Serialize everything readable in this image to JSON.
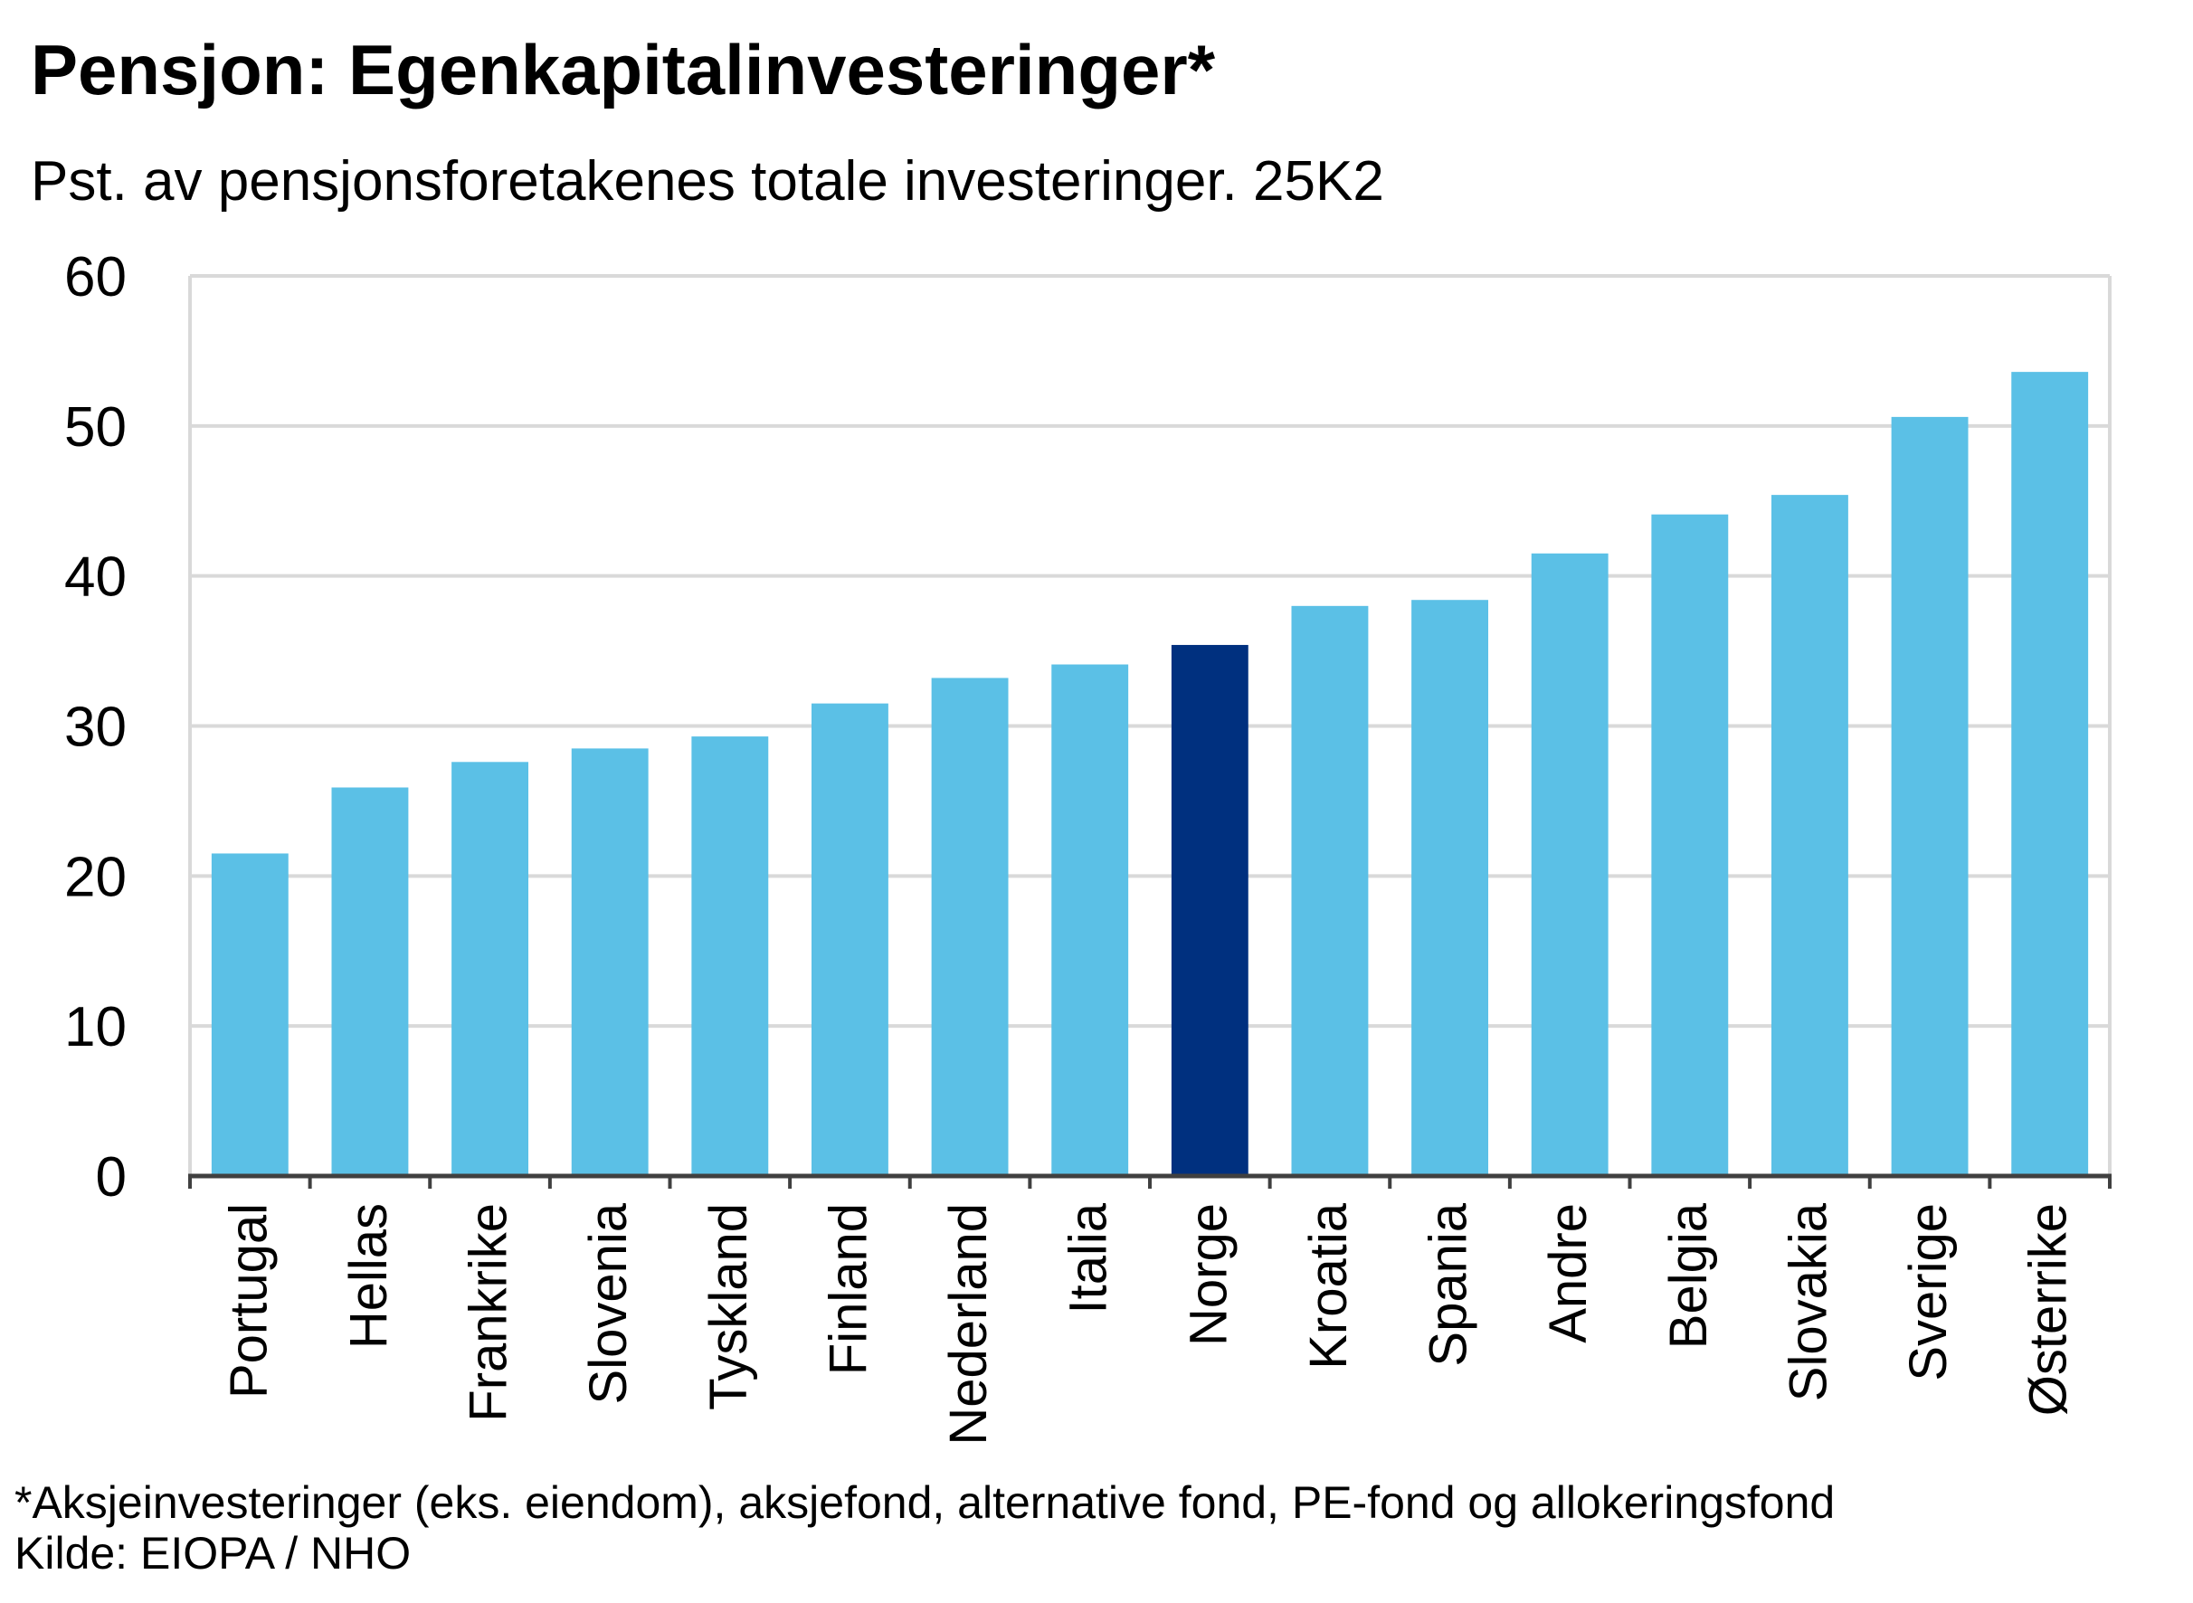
{
  "title": "Pensjon: Egenkapitalinvesteringer*",
  "subtitle": "Pst. av pensjonsforetakenes totale investeringer. 25K2",
  "footnote": "*Aksjeinvesteringer (eks. eiendom), aksjefond, alternative fond, PE-fond og allokeringsfond",
  "source": "Kilde: EIOPA / NHO",
  "colors": {
    "bar": "#5BC0E6",
    "highlight": "#00307F",
    "grid": "#D9D9D9",
    "axis": "#404040"
  },
  "chart_data": {
    "type": "bar",
    "categories": [
      "Portugal",
      "Hellas",
      "Frankrike",
      "Slovenia",
      "Tyskland",
      "Finland",
      "Nederland",
      "Italia",
      "Norge",
      "Kroatia",
      "Spania",
      "Andre",
      "Belgia",
      "Slovakia",
      "Sverige",
      "Østerrike"
    ],
    "values": [
      21.5,
      25.9,
      27.6,
      28.5,
      29.3,
      31.5,
      33.2,
      34.1,
      35.4,
      38.0,
      38.4,
      41.5,
      44.1,
      45.4,
      50.6,
      53.6
    ],
    "highlight": "Norge",
    "ylim": [
      0,
      60
    ],
    "yticks": [
      0,
      10,
      20,
      30,
      40,
      50,
      60
    ],
    "grid": true,
    "legend": "none"
  }
}
